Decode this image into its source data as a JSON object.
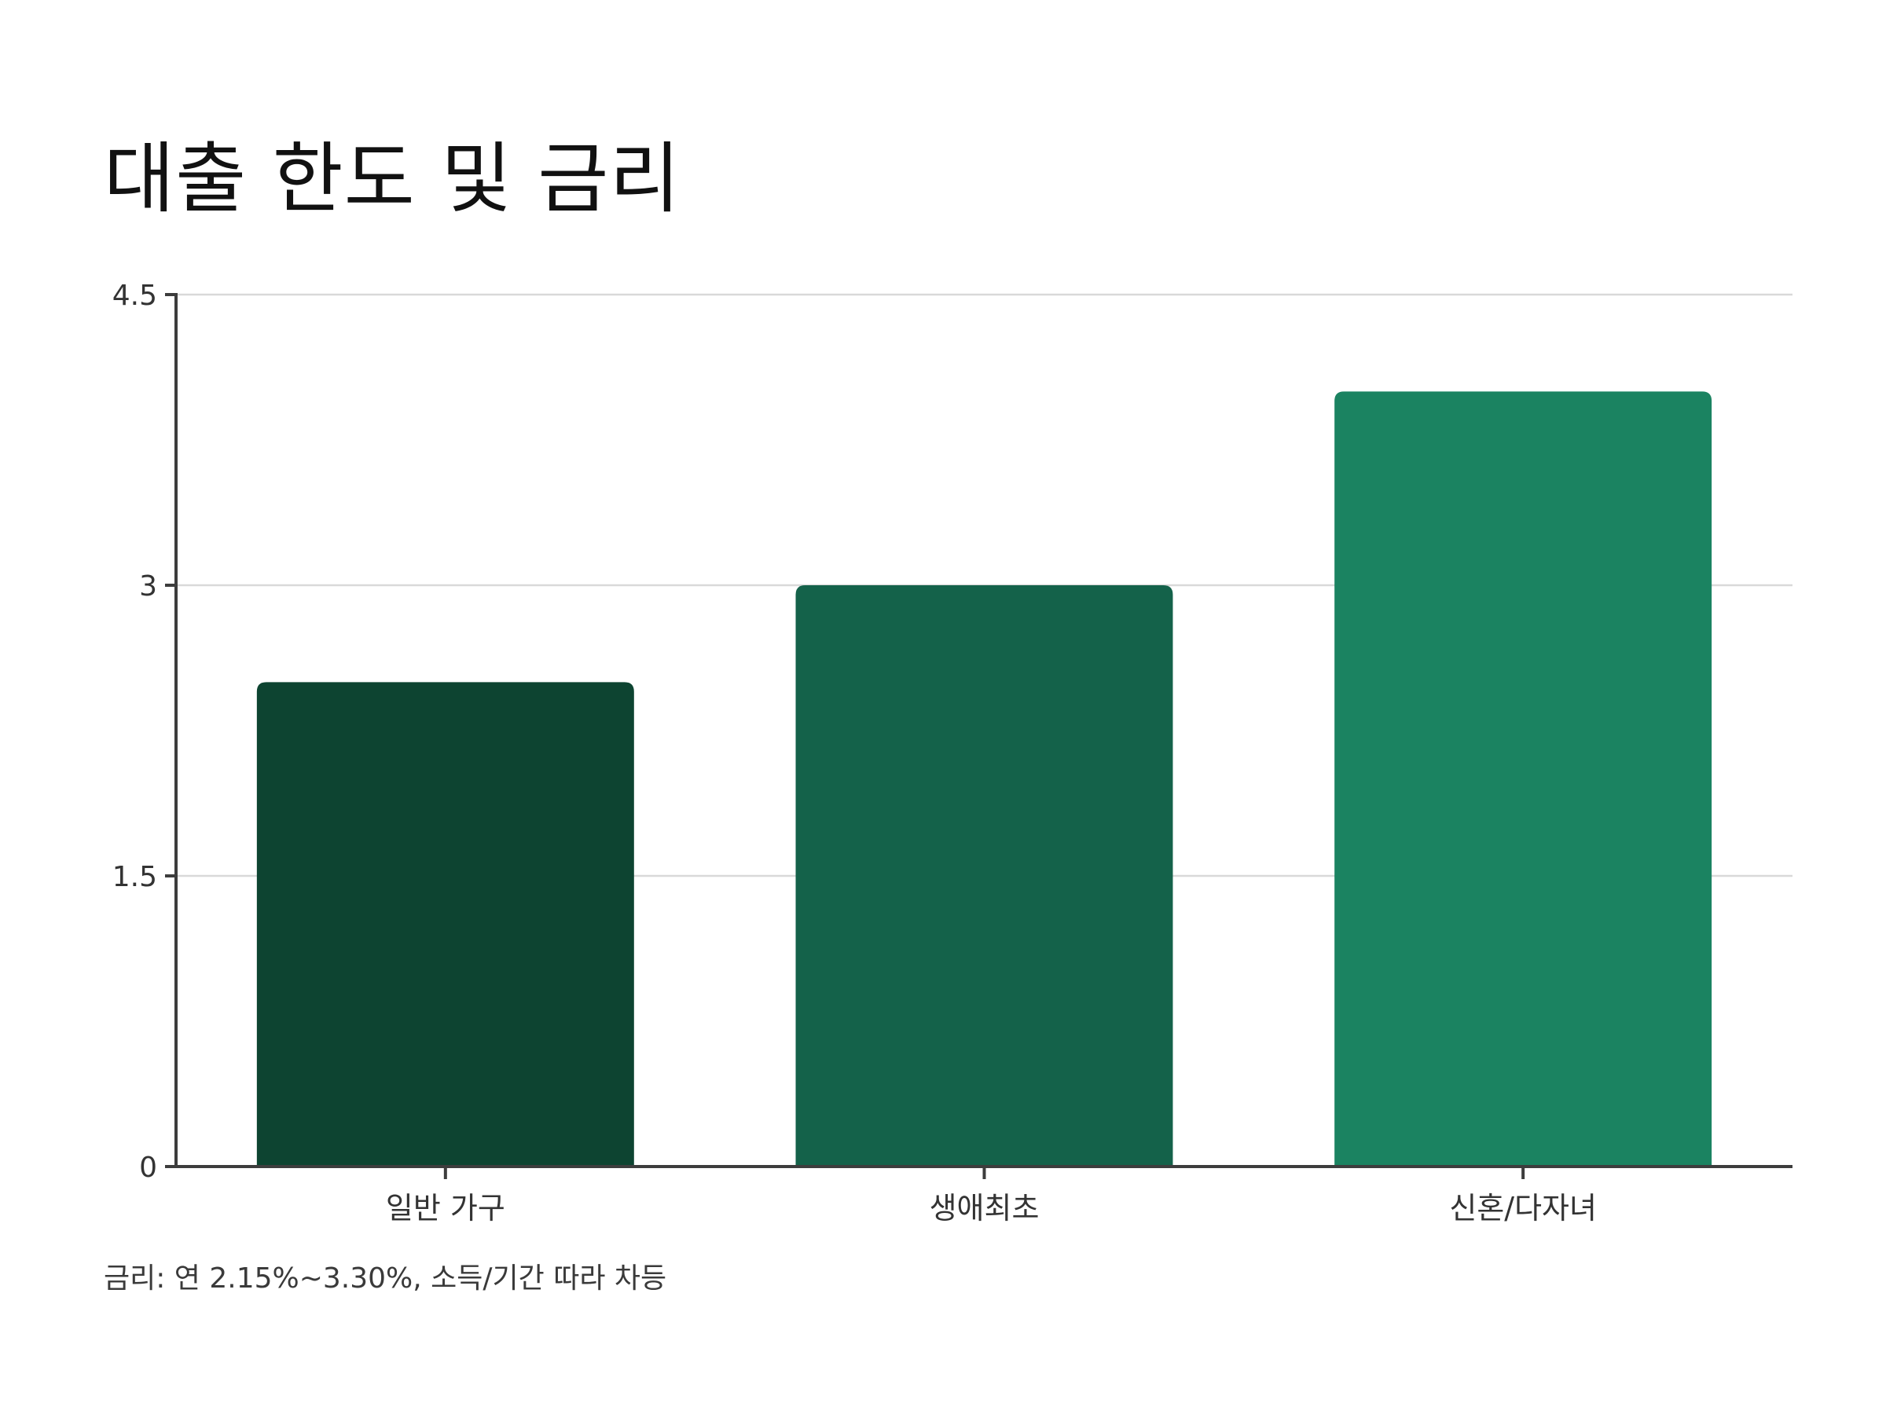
{
  "title": "대출 한도 및 금리",
  "note": "금리: 연 2.15%~3.30%, 소득/기간 따라 차등",
  "chart_data": {
    "type": "bar",
    "title": "대출 한도 및 금리",
    "categories": [
      "일반 가구",
      "생애최초",
      "신혼/다자녀"
    ],
    "values": [
      2.5,
      3.0,
      4.0
    ],
    "colors": [
      "#0d4431",
      "#14624a",
      "#1b8361"
    ],
    "xlabel": "",
    "ylabel": "",
    "ylim": [
      0,
      4.5
    ],
    "yticks": [
      0,
      1.5,
      3,
      4.5
    ],
    "ytick_labels": [
      "0",
      "1.5",
      "3",
      "4.5"
    ],
    "grid": true,
    "legend": "none"
  }
}
